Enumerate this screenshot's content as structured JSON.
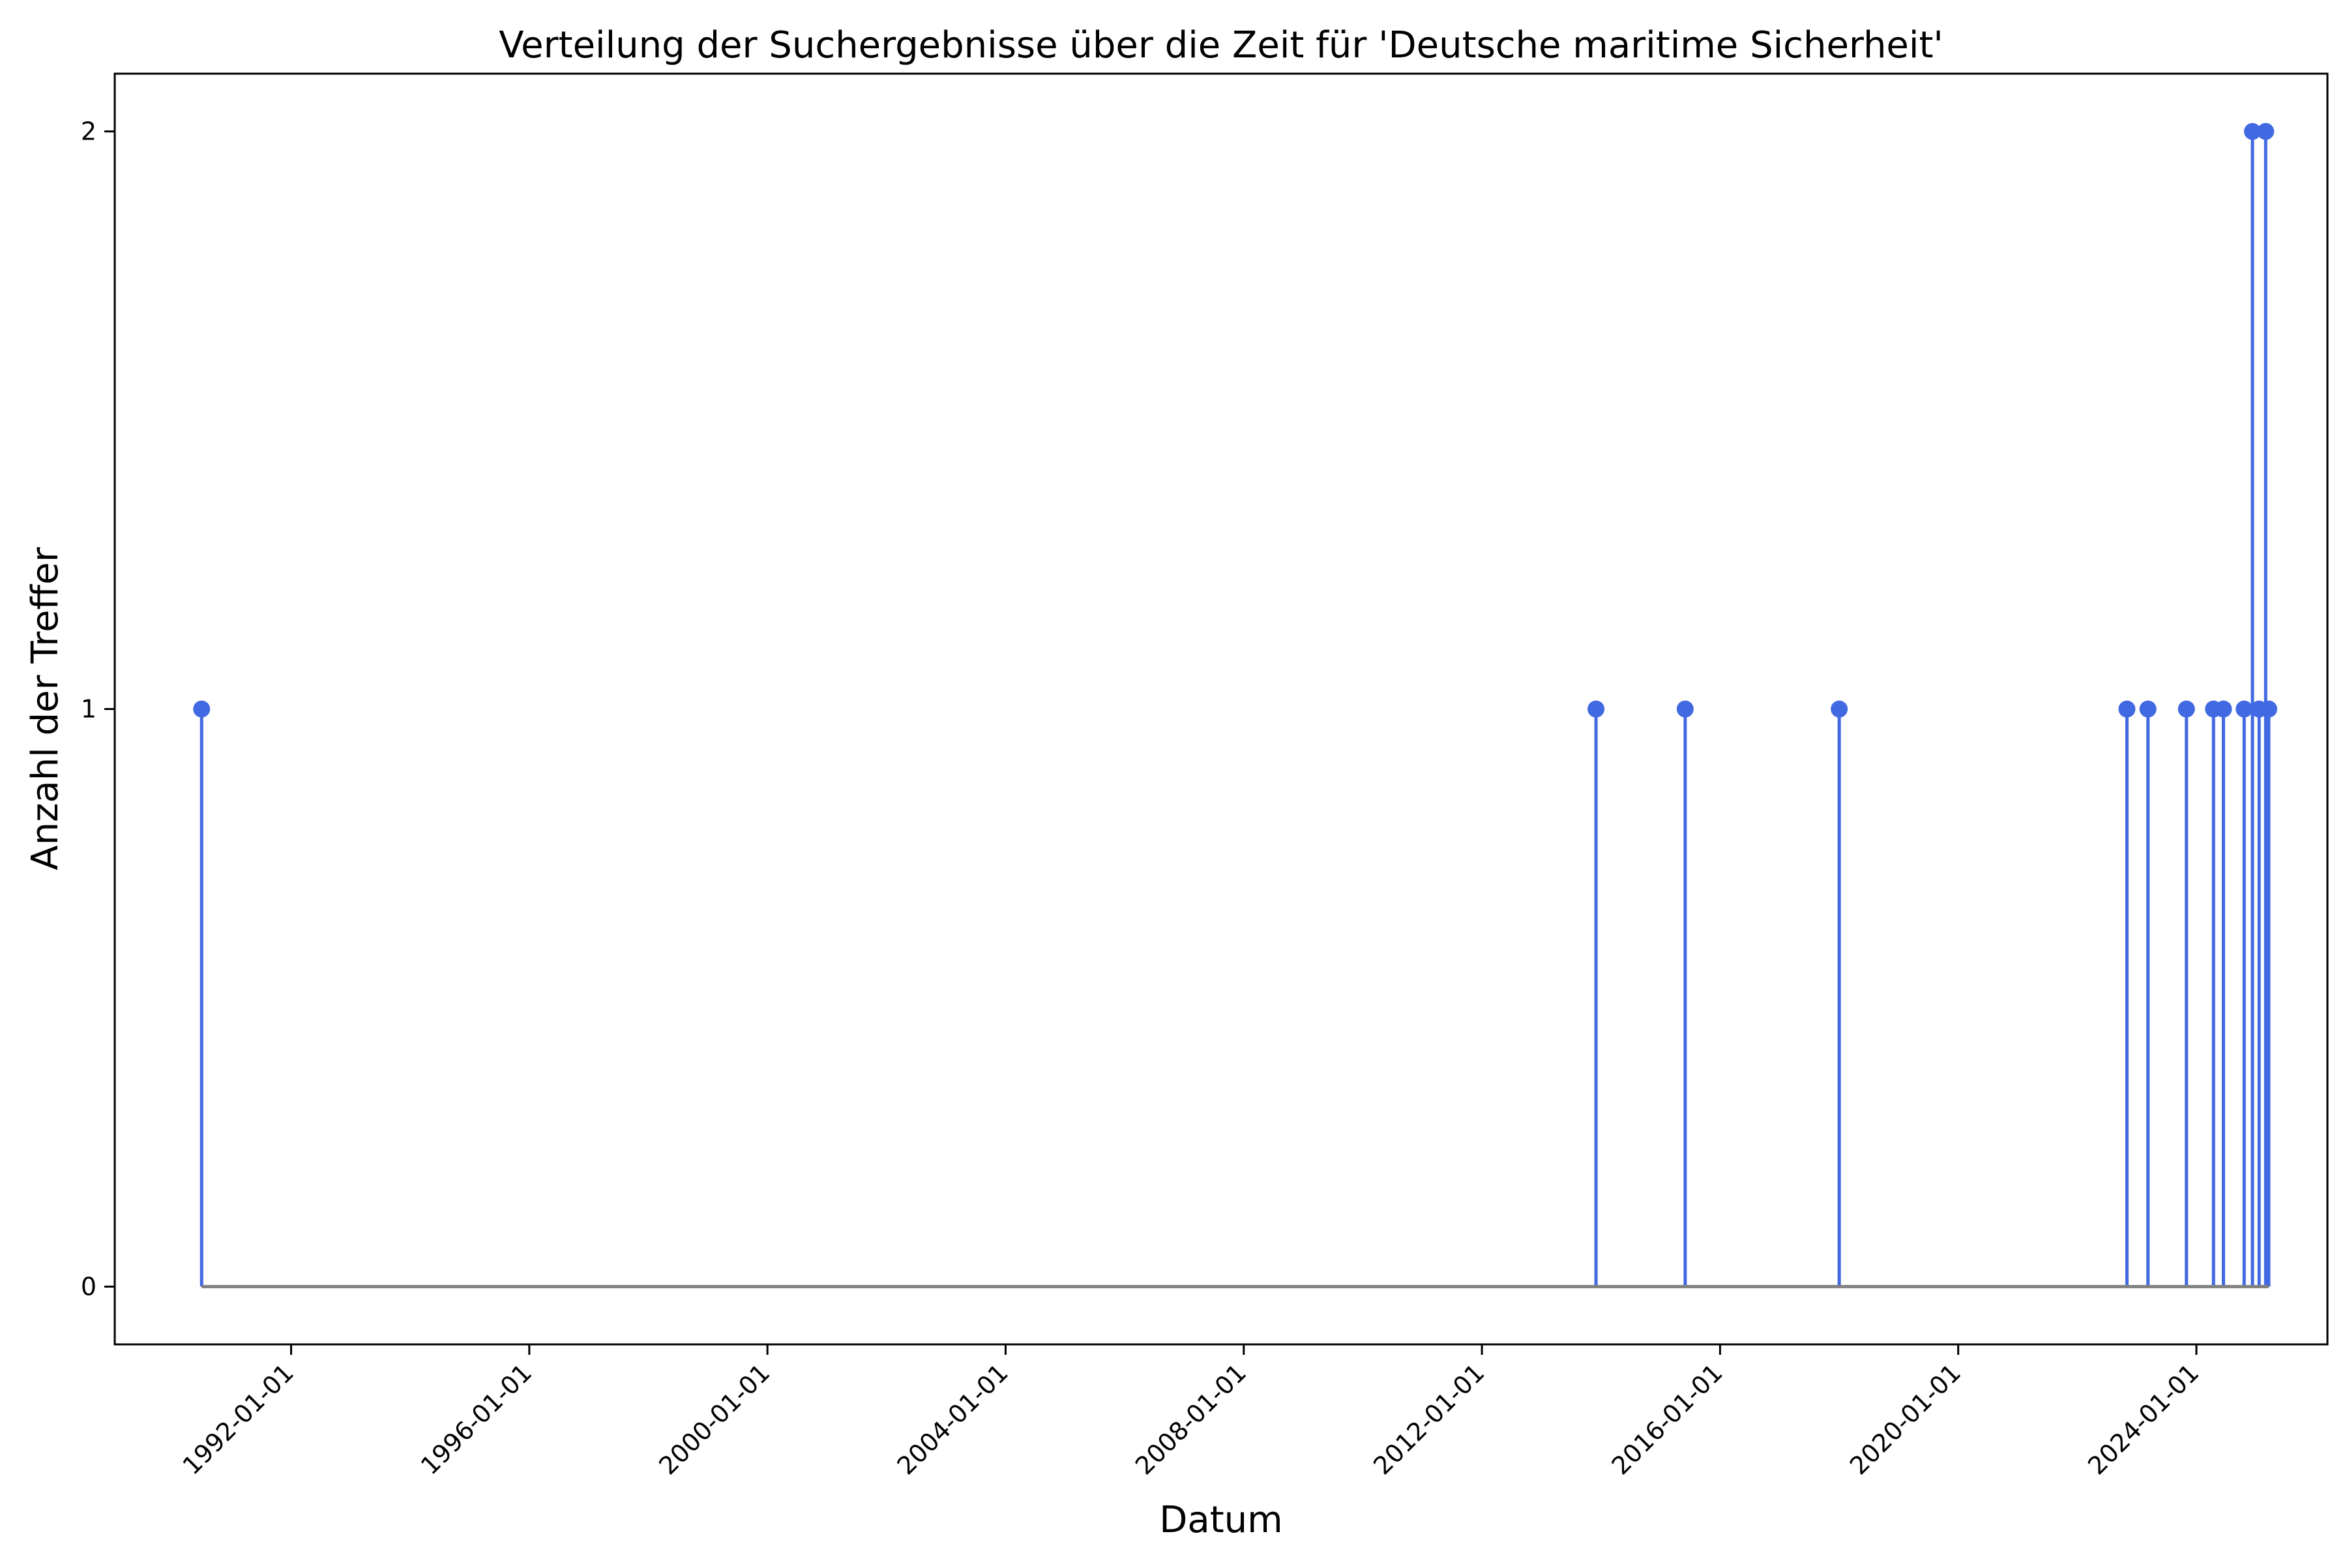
{
  "chart_data": {
    "type": "stem",
    "title": "Verteilung der Suchergebnisse über die Zeit für 'Deutsche maritime Sicherheit'",
    "xlabel": "Datum",
    "ylabel": "Anzahl der Treffer",
    "x_scale": "date",
    "xlim": [
      "1989-01-14",
      "2026-03-15"
    ],
    "ylim": [
      -0.1,
      2.1
    ],
    "x_ticks": [
      "1992-01-01",
      "1996-01-01",
      "2000-01-01",
      "2004-01-01",
      "2008-01-01",
      "2012-01-01",
      "2016-01-01",
      "2020-01-01",
      "2024-01-01"
    ],
    "x_tick_rotation": 45,
    "y_ticks": [
      0,
      1,
      2
    ],
    "grid": false,
    "points": [
      {
        "x": "1990-07-01",
        "y": 1
      },
      {
        "x": "2013-12-01",
        "y": 1
      },
      {
        "x": "2015-06-01",
        "y": 1
      },
      {
        "x": "2018-01-01",
        "y": 1
      },
      {
        "x": "2022-11-01",
        "y": 1
      },
      {
        "x": "2023-03-10",
        "y": 1
      },
      {
        "x": "2023-11-01",
        "y": 1
      },
      {
        "x": "2024-04-15",
        "y": 1
      },
      {
        "x": "2024-06-15",
        "y": 1
      },
      {
        "x": "2024-10-20",
        "y": 1
      },
      {
        "x": "2024-12-10",
        "y": 2
      },
      {
        "x": "2025-01-20",
        "y": 1
      },
      {
        "x": "2025-03-01",
        "y": 2
      },
      {
        "x": "2025-03-20",
        "y": 1
      }
    ],
    "colors": {
      "stem": "#4169e1",
      "marker": "#4169e1",
      "baseline": "#808080",
      "axes": "#000000"
    }
  }
}
